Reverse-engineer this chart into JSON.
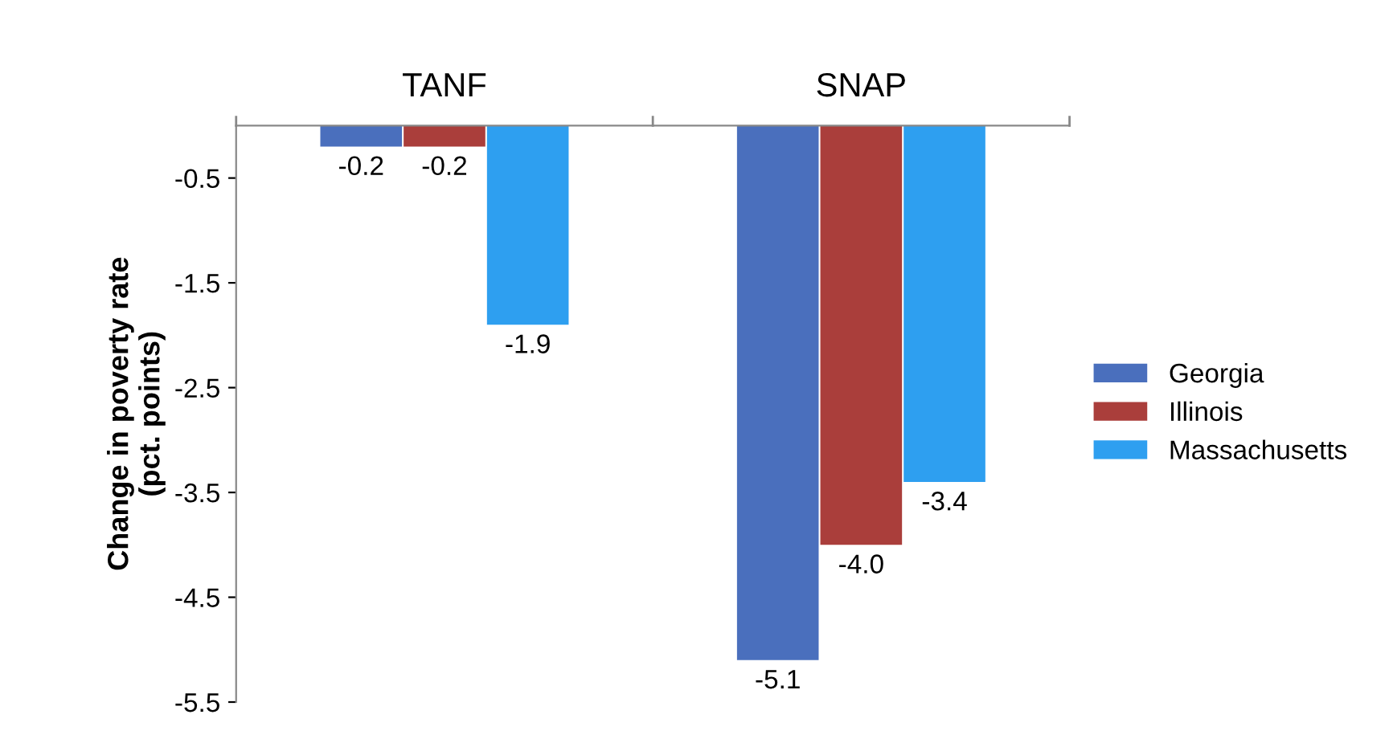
{
  "chart_data": {
    "type": "bar",
    "categories": [
      "TANF",
      "SNAP"
    ],
    "ylabel": "Change in poverty rate\n(pct. points)",
    "series": [
      {
        "name": "Georgia",
        "color": "#4a6fbd",
        "values": [
          -0.2,
          -5.1
        ]
      },
      {
        "name": "Illinois",
        "color": "#aa3e3b",
        "values": [
          -0.2,
          -4.0
        ]
      },
      {
        "name": "Massachusetts",
        "color": "#2e9ff0",
        "values": [
          -1.9,
          -3.4
        ]
      }
    ],
    "value_labels": [
      [
        "-0.2",
        "-5.1"
      ],
      [
        "-0.2",
        "-4.0"
      ],
      [
        "-1.9",
        "-3.4"
      ]
    ],
    "ylim": [
      -5.5,
      0
    ],
    "yticks": [
      -0.5,
      -1.5,
      -2.5,
      -3.5,
      -4.5,
      -5.5
    ],
    "legend": "right",
    "grid": false
  }
}
